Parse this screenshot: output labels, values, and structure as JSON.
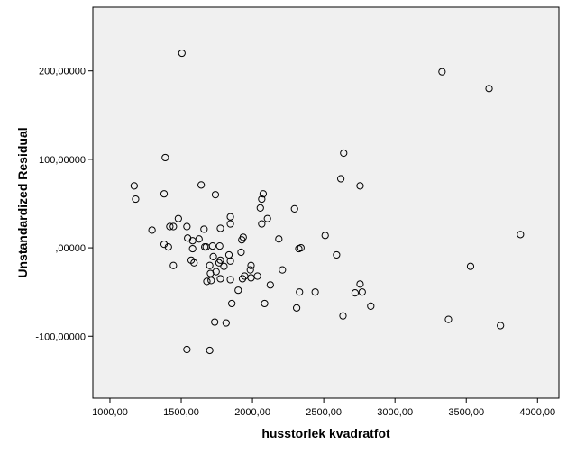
{
  "chart_data": {
    "type": "scatter",
    "title": "",
    "xlabel": "husstorlek kvadratfot",
    "ylabel": "Unstandardized Residual",
    "xlim": [
      880,
      4150
    ],
    "ylim": [
      -170,
      272
    ],
    "xticks": [
      1000,
      1500,
      2000,
      2500,
      3000,
      3500,
      4000
    ],
    "xtick_labels": [
      "1000,00",
      "1500,00",
      "2000,00",
      "2500,00",
      "3000,00",
      "3500,00",
      "4000,00"
    ],
    "yticks": [
      -100,
      0,
      100,
      200
    ],
    "ytick_labels": [
      "-100,00000",
      ",00000",
      "100,00000",
      "200,00000"
    ],
    "grid": false,
    "plot_background": "#f0f0f0",
    "marker": "hollow-circle",
    "marker_color": "#000000",
    "series": [
      {
        "points": [
          [
            1505,
            220
          ],
          [
            3330,
            199
          ],
          [
            3660,
            180
          ],
          [
            2640,
            107
          ],
          [
            1388,
            102
          ],
          [
            2620,
            78
          ],
          [
            2755,
            70
          ],
          [
            1170,
            70
          ],
          [
            1640,
            71
          ],
          [
            1180,
            55
          ],
          [
            1380,
            61
          ],
          [
            1740,
            60
          ],
          [
            2075,
            61
          ],
          [
            2065,
            55
          ],
          [
            2295,
            44
          ],
          [
            2055,
            45
          ],
          [
            1480,
            33
          ],
          [
            1845,
            35
          ],
          [
            2105,
            33
          ],
          [
            1845,
            27
          ],
          [
            2065,
            27
          ],
          [
            1420,
            24
          ],
          [
            1445,
            24
          ],
          [
            1540,
            24
          ],
          [
            1660,
            21
          ],
          [
            1775,
            22
          ],
          [
            1295,
            20
          ],
          [
            1935,
            12
          ],
          [
            2185,
            10
          ],
          [
            2510,
            14
          ],
          [
            3880,
            15
          ],
          [
            1545,
            11
          ],
          [
            1625,
            10
          ],
          [
            1580,
            8
          ],
          [
            1925,
            9
          ],
          [
            1380,
            4
          ],
          [
            1410,
            1
          ],
          [
            1665,
            1
          ],
          [
            1675,
            1
          ],
          [
            1720,
            2
          ],
          [
            1770,
            2
          ],
          [
            1580,
            -1
          ],
          [
            2325,
            -1
          ],
          [
            2340,
            0
          ],
          [
            1920,
            -5
          ],
          [
            1835,
            -8
          ],
          [
            2590,
            -8
          ],
          [
            1725,
            -10
          ],
          [
            1775,
            -14
          ],
          [
            1570,
            -14
          ],
          [
            1845,
            -15
          ],
          [
            1590,
            -17
          ],
          [
            1765,
            -17
          ],
          [
            1445,
            -20
          ],
          [
            1990,
            -20
          ],
          [
            1700,
            -20
          ],
          [
            1800,
            -21
          ],
          [
            3530,
            -21
          ],
          [
            1985,
            -25
          ],
          [
            2210,
            -25
          ],
          [
            1745,
            -27
          ],
          [
            1705,
            -29
          ],
          [
            1945,
            -32
          ],
          [
            2035,
            -32
          ],
          [
            1990,
            -34
          ],
          [
            1775,
            -35
          ],
          [
            1930,
            -35
          ],
          [
            1845,
            -36
          ],
          [
            1710,
            -37
          ],
          [
            1680,
            -38
          ],
          [
            2755,
            -41
          ],
          [
            2125,
            -42
          ],
          [
            1900,
            -48
          ],
          [
            2330,
            -50
          ],
          [
            2440,
            -50
          ],
          [
            2720,
            -51
          ],
          [
            2770,
            -50
          ],
          [
            1855,
            -63
          ],
          [
            2085,
            -63
          ],
          [
            2830,
            -66
          ],
          [
            2310,
            -68
          ],
          [
            2635,
            -77
          ],
          [
            3375,
            -81
          ],
          [
            1735,
            -84
          ],
          [
            1815,
            -85
          ],
          [
            3740,
            -88
          ],
          [
            1540,
            -115
          ],
          [
            1700,
            -116
          ]
        ]
      }
    ]
  }
}
